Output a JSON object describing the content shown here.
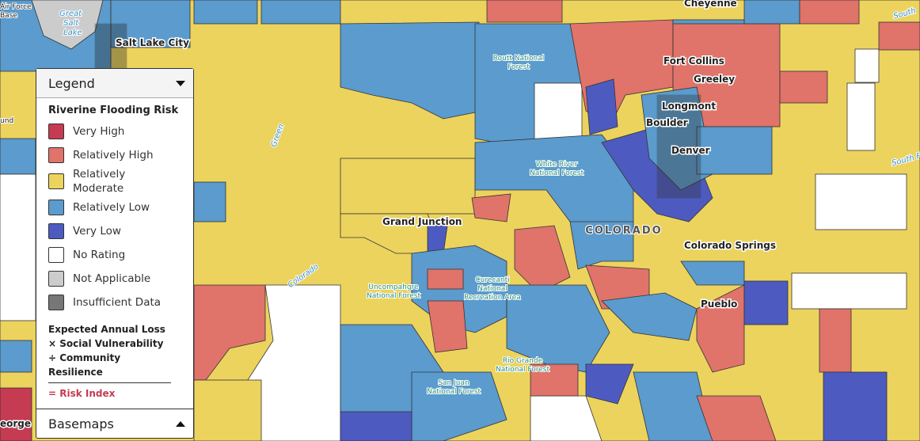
{
  "legend": {
    "title": "Legend",
    "heading": "Riverine Flooding Risk",
    "items": [
      {
        "label": "Very High",
        "color": "#c43b52"
      },
      {
        "label": "Relatively High",
        "color": "#e0736a"
      },
      {
        "label": "Relatively Moderate",
        "color": "#ecd35e"
      },
      {
        "label": "Relatively Low",
        "color": "#5b9bcd"
      },
      {
        "label": "Very Low",
        "color": "#4d5bc0"
      },
      {
        "label": "No Rating",
        "color": "#ffffff"
      },
      {
        "label": "Not Applicable",
        "color": "#cccccc"
      },
      {
        "label": "Insufficient Data",
        "color": "#777777"
      }
    ],
    "formula": [
      "Expected Annual Loss",
      "× Social Vulnerability",
      "÷ Community Resilience"
    ],
    "result": "= Risk Index",
    "basemaps": "Basemaps"
  },
  "places": {
    "cities": [
      "Salt Lake City",
      "Cheyenne",
      "Fort Collins",
      "Greeley",
      "Longmont",
      "Boulder",
      "Denver",
      "Grand Junction",
      "Colorado Springs",
      "Pueblo",
      "eorge"
    ],
    "state": "COLORADO",
    "water": [
      "Great",
      "Salt",
      "Lake",
      "Green",
      "Colorado",
      "South",
      "South Fo"
    ],
    "areas": [
      [
        "Routt National",
        "Forest"
      ],
      [
        "White River",
        "National Forest"
      ],
      [
        "Uncompahgre",
        "National Forest"
      ],
      [
        "Curecanti",
        "National",
        "Recreation Area"
      ],
      [
        "Rio Grande",
        "National Forest"
      ],
      [
        "San Juan",
        "National Forest"
      ]
    ],
    "edge": [
      "Air Force",
      "Base",
      "und"
    ]
  }
}
